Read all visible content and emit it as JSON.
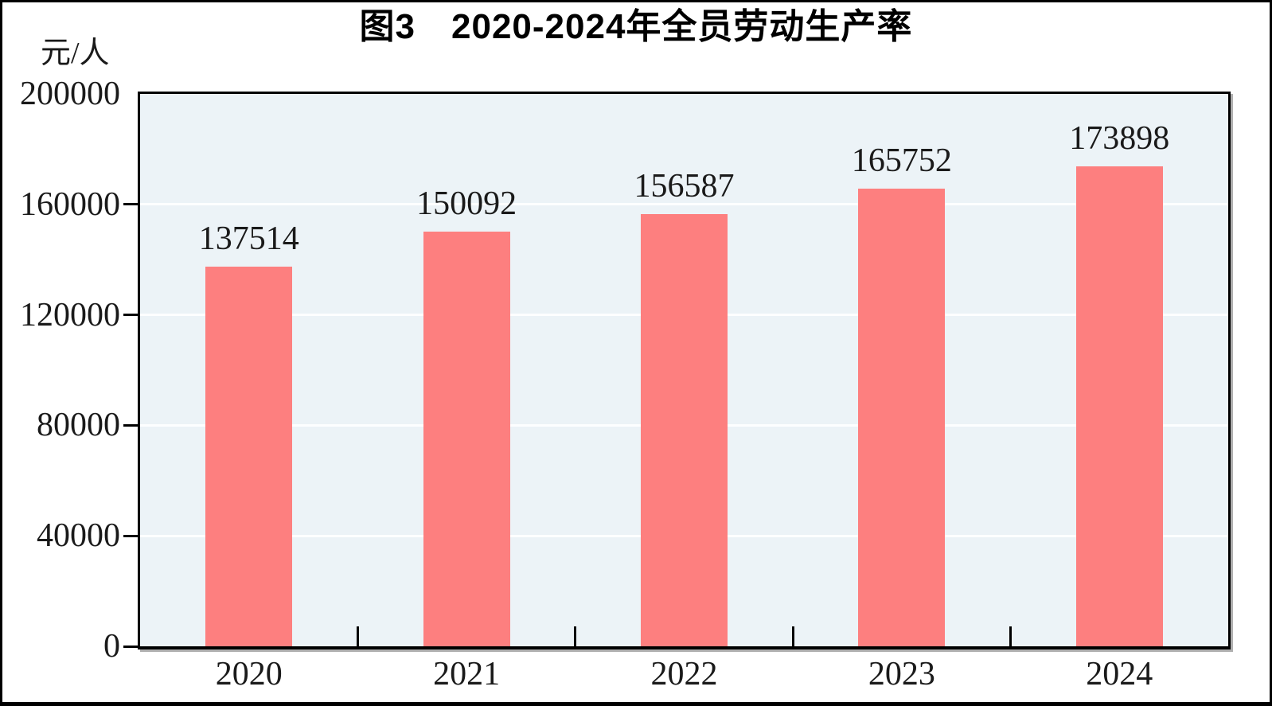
{
  "figure": {
    "title": "图3　2020-2024年全员劳动生产率",
    "unit_label": "元/人"
  },
  "colors": {
    "bar": "#fd7f7f",
    "plot_background": "#ecf3f7",
    "gridline": "#fdfeff",
    "axis": "#000000",
    "frame": "#000000",
    "text": "#1a1a1a"
  },
  "chart_data": {
    "type": "bar",
    "title": "图3　2020-2024年全员劳动生产率",
    "categories": [
      "2020",
      "2021",
      "2022",
      "2023",
      "2024"
    ],
    "values": [
      137514,
      150092,
      156587,
      165752,
      173898
    ],
    "data_labels": [
      "137514",
      "150092",
      "156587",
      "165752",
      "173898"
    ],
    "xlabel": "",
    "ylabel": "元/人",
    "ylim": [
      0,
      200000
    ],
    "ytick_interval": 40000,
    "yticks": [
      0,
      40000,
      80000,
      120000,
      160000,
      200000
    ],
    "ytick_labels": [
      "0",
      "40000",
      "80000",
      "120000",
      "160000",
      "200000"
    ],
    "grid": true,
    "gridline_orientation": "horizontal",
    "legend": "none",
    "bar_color": "#fd7f7f",
    "bar_width_fraction": 0.4
  }
}
